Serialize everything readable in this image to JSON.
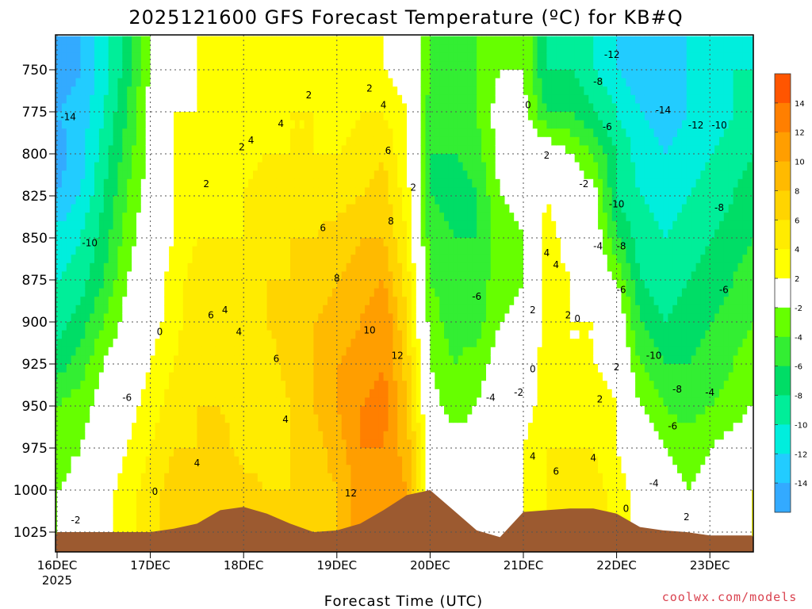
{
  "chart_data": {
    "type": "heatmap",
    "title": "2025121600 GFS Forecast Temperature (ºC) for KB#Q",
    "xlabel": "Forecast Time (UTC)",
    "ylabel": "Pressure (hPa)",
    "credit": "coolwx.com/models",
    "credit_color": "#d9424f",
    "x_ticks": [
      {
        "day": 0,
        "label": "16DEC",
        "sub": "2025"
      },
      {
        "day": 1,
        "label": "17DEC",
        "sub": ""
      },
      {
        "day": 2,
        "label": "18DEC",
        "sub": ""
      },
      {
        "day": 3,
        "label": "19DEC",
        "sub": ""
      },
      {
        "day": 4,
        "label": "20DEC",
        "sub": ""
      },
      {
        "day": 5,
        "label": "21DEC",
        "sub": ""
      },
      {
        "day": 6,
        "label": "22DEC",
        "sub": ""
      },
      {
        "day": 7,
        "label": "23DEC",
        "sub": ""
      }
    ],
    "xlim": [
      0,
      7.45
    ],
    "ylim": [
      1035,
      732
    ],
    "y_ticks": [
      750,
      775,
      800,
      825,
      850,
      875,
      900,
      925,
      950,
      975,
      1000,
      1025
    ],
    "grid": true,
    "colorbar": {
      "labels": [
        "14",
        "12",
        "10",
        "8",
        "6",
        "4",
        "2",
        "-2",
        "-4",
        "-6",
        "-8",
        "-10",
        "-12",
        "-14"
      ],
      "colors": [
        "#ff5500",
        "#ff7f00",
        "#ff9e00",
        "#ffba00",
        "#ffd400",
        "#ffec00",
        "#ffff00",
        "#ffffff",
        "#66ff00",
        "#33ee33",
        "#00dd66",
        "#00ee99",
        "#00eedd",
        "#22ccff",
        "#33aaff"
      ]
    },
    "grid_days": [
      0,
      0.25,
      0.5,
      0.75,
      1,
      1.25,
      1.5,
      1.75,
      2,
      2.25,
      2.5,
      2.75,
      3,
      3.25,
      3.5,
      3.75,
      4,
      4.25,
      4.5,
      4.75,
      5,
      5.25,
      5.5,
      5.75,
      6,
      6.25,
      6.5,
      6.75,
      7,
      7.25,
      7.45
    ],
    "grid_levels": [
      735,
      750,
      775,
      800,
      825,
      850,
      875,
      900,
      925,
      950,
      975,
      1000,
      1025,
      1035
    ],
    "temperature": [
      [
        -16,
        -14,
        -15,
        -14,
        -11,
        -10,
        -9,
        -7,
        -4,
        -3,
        -2
      ],
      [
        -14,
        -13,
        -13,
        -12,
        -10,
        -9,
        -7,
        -5,
        -3,
        -2,
        -1
      ],
      [
        -11,
        -10,
        -9,
        -8,
        -7,
        -6,
        -4,
        -2,
        -1,
        0,
        1
      ],
      [
        -7,
        -6,
        -5,
        -4,
        -3,
        -2,
        -1,
        0,
        1,
        2,
        3
      ],
      [
        -2,
        -1,
        -1,
        -1,
        0,
        0,
        1,
        2,
        3,
        4,
        5
      ],
      [
        1,
        2,
        2,
        2,
        2,
        3,
        3,
        4,
        5,
        6,
        7
      ],
      [
        2,
        2,
        3,
        3,
        4,
        5,
        6,
        6,
        6,
        6,
        6
      ],
      [
        2,
        3,
        3,
        3,
        4,
        4,
        5,
        5,
        6,
        7,
        7
      ],
      [
        2,
        3,
        3,
        4,
        4,
        5,
        5,
        4,
        5,
        5,
        7
      ],
      [
        3,
        3,
        4,
        5,
        5,
        6,
        6,
        5,
        4,
        5,
        6
      ],
      [
        3,
        4,
        4,
        5,
        6,
        6,
        7,
        7,
        6,
        6,
        6
      ],
      [
        3,
        4,
        4,
        5,
        6,
        7,
        8,
        8,
        8,
        7,
        7
      ],
      [
        2,
        3,
        4,
        5,
        7,
        8,
        9,
        10,
        10,
        9,
        8
      ],
      [
        3,
        4,
        5,
        6,
        8,
        9,
        10,
        11,
        12,
        12,
        11
      ],
      [
        2,
        4,
        6,
        7,
        8,
        10,
        12,
        12,
        13,
        12,
        12
      ],
      [
        1,
        2,
        2,
        3,
        4,
        5,
        6,
        7,
        8,
        9,
        10
      ],
      [
        -4,
        -5,
        -6,
        -6,
        -5,
        -4,
        -3,
        -2,
        -1,
        0,
        1
      ],
      [
        -4,
        -5,
        -6,
        -7,
        -6,
        -5,
        -5,
        -4,
        -3,
        -1,
        0
      ],
      [
        -4,
        -4,
        -5,
        -6,
        -6,
        -5,
        -5,
        -3,
        -2,
        -1,
        0
      ],
      [
        -2,
        -1,
        -1,
        -2,
        -3,
        -3,
        -2,
        -1,
        0,
        1,
        1
      ],
      [
        -2,
        -1,
        0,
        -1,
        -2,
        -2,
        -1,
        0,
        1,
        2,
        2
      ],
      [
        -8,
        -6,
        0,
        2,
        3,
        3,
        3,
        3,
        3,
        4,
        4
      ],
      [
        -8,
        -6,
        -2,
        0,
        1,
        2,
        2,
        2,
        3,
        4,
        5
      ],
      [
        -10,
        -8,
        -4,
        -1,
        0,
        1,
        2,
        2,
        3,
        4,
        5
      ],
      [
        -12,
        -10,
        -8,
        -8,
        -6,
        -2,
        0,
        1,
        2,
        2,
        3
      ],
      [
        -13,
        -12,
        -11,
        -10,
        -9,
        -8,
        -6,
        -4,
        -2,
        0,
        1
      ],
      [
        -13,
        -13,
        -12,
        -11,
        -10,
        -9,
        -8,
        -6,
        -4,
        -2,
        -1
      ],
      [
        -12,
        -12,
        -11,
        -10,
        -9,
        -8,
        -7,
        -6,
        -5,
        -3,
        -2
      ],
      [
        -11,
        -11,
        -10,
        -9,
        -8,
        -7,
        -6,
        -5,
        -4,
        -2,
        -1
      ],
      [
        -10,
        -10,
        -9,
        -8,
        -7,
        -6,
        -5,
        -4,
        -3,
        -1,
        0
      ],
      [
        -10,
        -9,
        -8,
        -7,
        -6,
        -5,
        -4,
        -3,
        -2,
        0,
        2
      ]
    ],
    "temperature_levels": [
      750,
      775,
      800,
      825,
      850,
      875,
      900,
      925,
      950,
      975,
      1000
    ],
    "terrain": {
      "days": [
        0,
        0.5,
        1,
        1.25,
        1.5,
        1.75,
        2,
        2.25,
        2.5,
        2.75,
        3,
        3.25,
        3.5,
        3.75,
        4,
        4.25,
        4.5,
        4.75,
        5,
        5.25,
        5.5,
        5.75,
        6,
        6.25,
        6.5,
        6.75,
        7,
        7.25,
        7.45
      ],
      "pressure": [
        1025,
        1025,
        1025,
        1023,
        1020,
        1012,
        1010,
        1014,
        1020,
        1025,
        1024,
        1020,
        1012,
        1003,
        1000,
        1012,
        1024,
        1028,
        1013,
        1012,
        1011,
        1011,
        1014,
        1022,
        1024,
        1025,
        1027,
        1027,
        1027
      ],
      "color": "#9c5a30"
    },
    "contour_labels": [
      {
        "t": "-14",
        "day": 0.12,
        "p": 778
      },
      {
        "t": "-10",
        "day": 0.35,
        "p": 853
      },
      {
        "t": "-6",
        "day": 0.75,
        "p": 945
      },
      {
        "t": "-2",
        "day": 0.2,
        "p": 1018
      },
      {
        "t": "0",
        "day": 1.1,
        "p": 906
      },
      {
        "t": "0",
        "day": 1.05,
        "p": 1001
      },
      {
        "t": "2",
        "day": 1.6,
        "p": 818
      },
      {
        "t": "2",
        "day": 1.98,
        "p": 796
      },
      {
        "t": "4",
        "day": 2.08,
        "p": 792
      },
      {
        "t": "4",
        "day": 2.4,
        "p": 782
      },
      {
        "t": "2",
        "day": 2.7,
        "p": 765
      },
      {
        "t": "2",
        "day": 3.35,
        "p": 761
      },
      {
        "t": "4",
        "day": 3.5,
        "p": 771
      },
      {
        "t": "6",
        "day": 3.55,
        "p": 798
      },
      {
        "t": "2",
        "day": 3.82,
        "p": 820
      },
      {
        "t": "6",
        "day": 2.85,
        "p": 844
      },
      {
        "t": "8",
        "day": 3.58,
        "p": 840
      },
      {
        "t": "8",
        "day": 3.0,
        "p": 874
      },
      {
        "t": "6",
        "day": 1.65,
        "p": 896
      },
      {
        "t": "4",
        "day": 1.8,
        "p": 893
      },
      {
        "t": "4",
        "day": 1.95,
        "p": 906
      },
      {
        "t": "6",
        "day": 2.35,
        "p": 922
      },
      {
        "t": "4",
        "day": 2.45,
        "p": 958
      },
      {
        "t": "10",
        "day": 3.35,
        "p": 905
      },
      {
        "t": "12",
        "day": 3.65,
        "p": 920
      },
      {
        "t": "4",
        "day": 1.5,
        "p": 984
      },
      {
        "t": "12",
        "day": 3.15,
        "p": 1002
      },
      {
        "t": "0",
        "day": 5.05,
        "p": 771
      },
      {
        "t": "-6",
        "day": 4.5,
        "p": 885
      },
      {
        "t": "-4",
        "day": 4.65,
        "p": 945
      },
      {
        "t": "-2",
        "day": 4.95,
        "p": 942
      },
      {
        "t": "0",
        "day": 5.1,
        "p": 928
      },
      {
        "t": "2",
        "day": 5.25,
        "p": 801
      },
      {
        "t": "4",
        "day": 5.25,
        "p": 859
      },
      {
        "t": "4",
        "day": 5.35,
        "p": 866
      },
      {
        "t": "2",
        "day": 5.1,
        "p": 893
      },
      {
        "t": "2",
        "day": 5.48,
        "p": 896
      },
      {
        "t": "0",
        "day": 5.58,
        "p": 898
      },
      {
        "t": "4",
        "day": 5.1,
        "p": 980
      },
      {
        "t": "6",
        "day": 5.35,
        "p": 989
      },
      {
        "t": "4",
        "day": 5.75,
        "p": 981
      },
      {
        "t": "2",
        "day": 5.82,
        "p": 946
      },
      {
        "t": "2",
        "day": 6.0,
        "p": 927
      },
      {
        "t": "-2",
        "day": 5.65,
        "p": 818
      },
      {
        "t": "0",
        "day": 6.1,
        "p": 1011
      },
      {
        "t": "-12",
        "day": 5.95,
        "p": 741
      },
      {
        "t": "-8",
        "day": 5.8,
        "p": 757
      },
      {
        "t": "-6",
        "day": 5.9,
        "p": 784
      },
      {
        "t": "-10",
        "day": 6.0,
        "p": 830
      },
      {
        "t": "-4",
        "day": 5.8,
        "p": 855
      },
      {
        "t": "-8",
        "day": 6.05,
        "p": 855
      },
      {
        "t": "-6",
        "day": 6.05,
        "p": 881
      },
      {
        "t": "-14",
        "day": 6.5,
        "p": 774
      },
      {
        "t": "-12",
        "day": 6.85,
        "p": 783
      },
      {
        "t": "-10",
        "day": 7.1,
        "p": 783
      },
      {
        "t": "-8",
        "day": 7.1,
        "p": 832
      },
      {
        "t": "-6",
        "day": 7.15,
        "p": 881
      },
      {
        "t": "-10",
        "day": 6.4,
        "p": 920
      },
      {
        "t": "-8",
        "day": 6.65,
        "p": 940
      },
      {
        "t": "-4",
        "day": 7.0,
        "p": 942
      },
      {
        "t": "-6",
        "day": 6.6,
        "p": 962
      },
      {
        "t": "-4",
        "day": 6.4,
        "p": 996
      },
      {
        "t": "2",
        "day": 6.75,
        "p": 1016
      }
    ]
  }
}
